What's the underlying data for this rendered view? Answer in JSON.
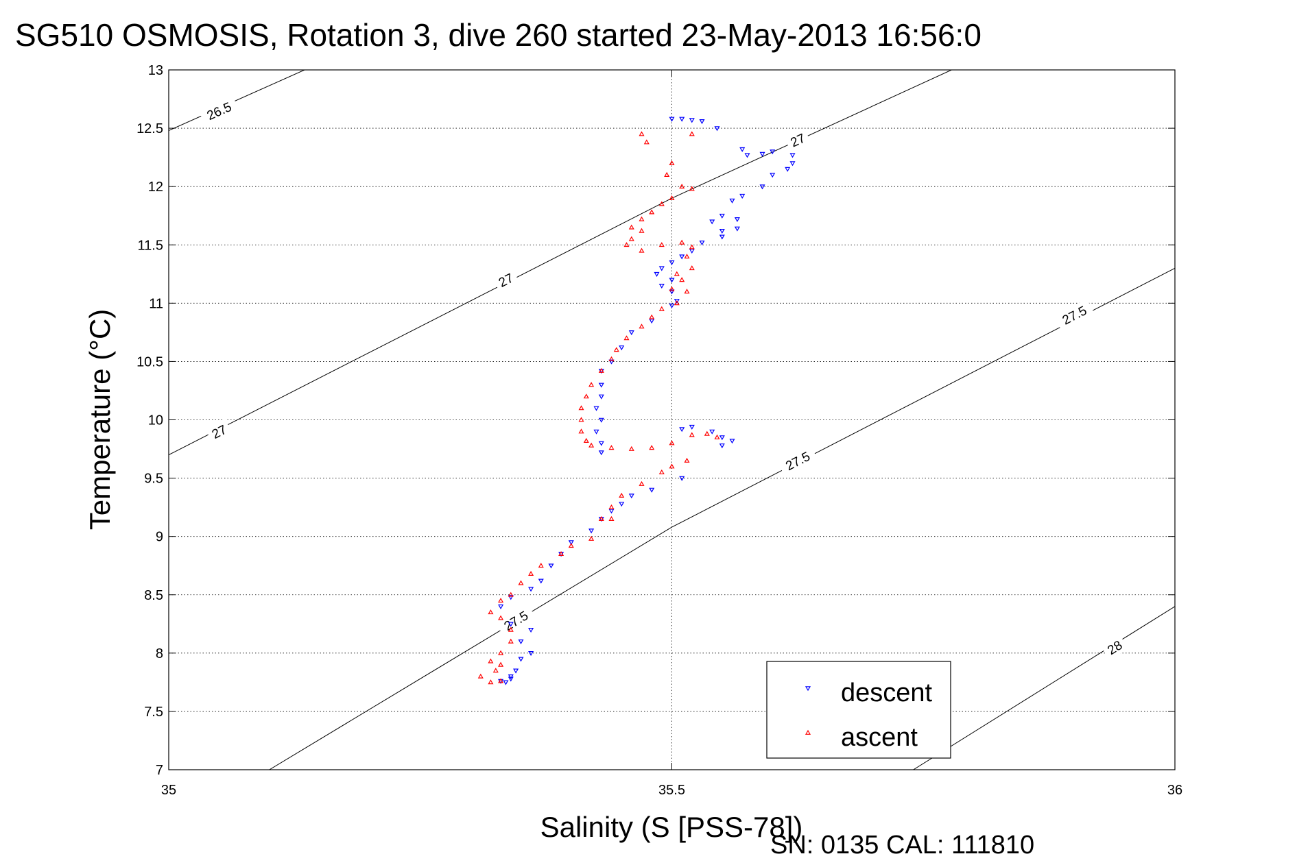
{
  "chart_data": {
    "type": "scatter",
    "title": "SG510 OSMOSIS, Rotation 3, dive 260 started 23-May-2013 16:56:0",
    "xlabel": "Salinity (S [PSS-78])",
    "ylabel": "Temperature (°C)",
    "footer": "SN: 0135  CAL: 111810",
    "xlim": [
      35,
      36
    ],
    "ylim": [
      7,
      13
    ],
    "xticks": [
      35,
      35.5,
      36
    ],
    "xtick_labels": [
      "35",
      "35.5",
      "36"
    ],
    "yticks": [
      7,
      7.5,
      8,
      8.5,
      9,
      9.5,
      10,
      10.5,
      11,
      11.5,
      12,
      12.5,
      13
    ],
    "ytick_labels": [
      "7",
      "7.5",
      "8",
      "8.5",
      "9",
      "9.5",
      "10",
      "10.5",
      "11",
      "11.5",
      "12",
      "12.5",
      "13"
    ],
    "grid": true,
    "legend_position": "bottom-right",
    "density_contours": [
      {
        "value": 26.5,
        "label": "26.5",
        "points": [
          [
            35.0,
            12.48
          ],
          [
            35.135,
            13.0
          ]
        ],
        "label_at": [
          [
            35.05,
            12.65
          ]
        ]
      },
      {
        "value": 27.0,
        "label": "27",
        "points": [
          [
            35.0,
            9.7
          ],
          [
            35.5,
            11.9
          ],
          [
            35.778,
            13.0
          ]
        ],
        "label_at": [
          [
            35.05,
            9.9
          ],
          [
            35.335,
            11.2
          ],
          [
            35.625,
            12.4
          ]
        ]
      },
      {
        "value": 27.5,
        "label": "27.5",
        "points": [
          [
            35.1,
            7.0
          ],
          [
            35.5,
            9.08
          ],
          [
            36.0,
            11.3
          ]
        ],
        "label_at": [
          [
            35.345,
            8.28
          ],
          [
            35.625,
            9.65
          ],
          [
            35.9,
            10.9
          ]
        ]
      },
      {
        "value": 28.0,
        "label": "28",
        "points": [
          [
            35.74,
            7.0
          ],
          [
            36.0,
            8.4
          ]
        ],
        "label_at": [
          [
            35.94,
            8.05
          ]
        ]
      }
    ],
    "series": [
      {
        "name": "descent",
        "color": "#0000ff",
        "marker": "triangle-down",
        "points": [
          [
            35.5,
            12.58
          ],
          [
            35.51,
            12.58
          ],
          [
            35.52,
            12.57
          ],
          [
            35.53,
            12.56
          ],
          [
            35.545,
            12.5
          ],
          [
            35.57,
            12.32
          ],
          [
            35.575,
            12.27
          ],
          [
            35.59,
            12.28
          ],
          [
            35.6,
            12.3
          ],
          [
            35.62,
            12.27
          ],
          [
            35.62,
            12.2
          ],
          [
            35.615,
            12.15
          ],
          [
            35.6,
            12.1
          ],
          [
            35.59,
            12.0
          ],
          [
            35.57,
            11.92
          ],
          [
            35.56,
            11.88
          ],
          [
            35.565,
            11.72
          ],
          [
            35.55,
            11.75
          ],
          [
            35.54,
            11.7
          ],
          [
            35.55,
            11.62
          ],
          [
            35.565,
            11.64
          ],
          [
            35.55,
            11.57
          ],
          [
            35.53,
            11.52
          ],
          [
            35.52,
            11.45
          ],
          [
            35.51,
            11.4
          ],
          [
            35.5,
            11.35
          ],
          [
            35.49,
            11.3
          ],
          [
            35.485,
            11.25
          ],
          [
            35.5,
            11.2
          ],
          [
            35.49,
            11.15
          ],
          [
            35.5,
            11.1
          ],
          [
            35.505,
            11.02
          ],
          [
            35.5,
            10.98
          ],
          [
            35.48,
            10.85
          ],
          [
            35.46,
            10.75
          ],
          [
            35.45,
            10.62
          ],
          [
            35.44,
            10.5
          ],
          [
            35.43,
            10.42
          ],
          [
            35.43,
            10.3
          ],
          [
            35.43,
            10.2
          ],
          [
            35.425,
            10.1
          ],
          [
            35.43,
            10.0
          ],
          [
            35.425,
            9.9
          ],
          [
            35.43,
            9.8
          ],
          [
            35.43,
            9.72
          ],
          [
            35.51,
            9.92
          ],
          [
            35.52,
            9.94
          ],
          [
            35.54,
            9.9
          ],
          [
            35.55,
            9.85
          ],
          [
            35.56,
            9.82
          ],
          [
            35.55,
            9.78
          ],
          [
            35.51,
            9.5
          ],
          [
            35.48,
            9.4
          ],
          [
            35.46,
            9.35
          ],
          [
            35.45,
            9.28
          ],
          [
            35.44,
            9.22
          ],
          [
            35.43,
            9.15
          ],
          [
            35.42,
            9.05
          ],
          [
            35.4,
            8.95
          ],
          [
            35.39,
            8.85
          ],
          [
            35.38,
            8.75
          ],
          [
            35.37,
            8.62
          ],
          [
            35.36,
            8.55
          ],
          [
            35.34,
            8.48
          ],
          [
            35.33,
            8.4
          ],
          [
            35.34,
            8.25
          ],
          [
            35.36,
            8.2
          ],
          [
            35.35,
            8.1
          ],
          [
            35.36,
            8.0
          ],
          [
            35.35,
            7.95
          ],
          [
            35.345,
            7.85
          ],
          [
            35.34,
            7.8
          ],
          [
            35.33,
            7.76
          ],
          [
            35.335,
            7.75
          ],
          [
            35.34,
            7.78
          ]
        ]
      },
      {
        "name": "ascent",
        "color": "#ff0000",
        "marker": "triangle-up",
        "points": [
          [
            35.47,
            12.45
          ],
          [
            35.475,
            12.38
          ],
          [
            35.52,
            12.45
          ],
          [
            35.5,
            12.2
          ],
          [
            35.495,
            12.1
          ],
          [
            35.51,
            12.0
          ],
          [
            35.52,
            11.98
          ],
          [
            35.5,
            11.9
          ],
          [
            35.49,
            11.85
          ],
          [
            35.48,
            11.78
          ],
          [
            35.47,
            11.72
          ],
          [
            35.46,
            11.65
          ],
          [
            35.47,
            11.62
          ],
          [
            35.46,
            11.55
          ],
          [
            35.455,
            11.5
          ],
          [
            35.47,
            11.45
          ],
          [
            35.49,
            11.5
          ],
          [
            35.51,
            11.52
          ],
          [
            35.52,
            11.48
          ],
          [
            35.515,
            11.4
          ],
          [
            35.52,
            11.3
          ],
          [
            35.505,
            11.25
          ],
          [
            35.51,
            11.2
          ],
          [
            35.5,
            11.12
          ],
          [
            35.515,
            11.1
          ],
          [
            35.505,
            11.0
          ],
          [
            35.49,
            10.95
          ],
          [
            35.48,
            10.88
          ],
          [
            35.47,
            10.8
          ],
          [
            35.455,
            10.7
          ],
          [
            35.445,
            10.6
          ],
          [
            35.44,
            10.52
          ],
          [
            35.43,
            10.42
          ],
          [
            35.42,
            10.3
          ],
          [
            35.415,
            10.2
          ],
          [
            35.41,
            10.1
          ],
          [
            35.41,
            10.0
          ],
          [
            35.41,
            9.9
          ],
          [
            35.415,
            9.82
          ],
          [
            35.42,
            9.78
          ],
          [
            35.44,
            9.76
          ],
          [
            35.46,
            9.75
          ],
          [
            35.48,
            9.76
          ],
          [
            35.5,
            9.8
          ],
          [
            35.52,
            9.87
          ],
          [
            35.535,
            9.88
          ],
          [
            35.545,
            9.85
          ],
          [
            35.515,
            9.65
          ],
          [
            35.5,
            9.6
          ],
          [
            35.49,
            9.55
          ],
          [
            35.47,
            9.45
          ],
          [
            35.45,
            9.35
          ],
          [
            35.44,
            9.25
          ],
          [
            35.43,
            9.15
          ],
          [
            35.44,
            9.15
          ],
          [
            35.42,
            8.98
          ],
          [
            35.4,
            8.92
          ],
          [
            35.39,
            8.85
          ],
          [
            35.37,
            8.75
          ],
          [
            35.36,
            8.68
          ],
          [
            35.35,
            8.6
          ],
          [
            35.34,
            8.5
          ],
          [
            35.33,
            8.45
          ],
          [
            35.32,
            8.35
          ],
          [
            35.33,
            8.3
          ],
          [
            35.34,
            8.2
          ],
          [
            35.34,
            8.1
          ],
          [
            35.33,
            8.0
          ],
          [
            35.32,
            7.93
          ],
          [
            35.33,
            7.9
          ],
          [
            35.325,
            7.85
          ],
          [
            35.31,
            7.8
          ],
          [
            35.32,
            7.75
          ],
          [
            35.33,
            7.76
          ]
        ]
      }
    ]
  }
}
